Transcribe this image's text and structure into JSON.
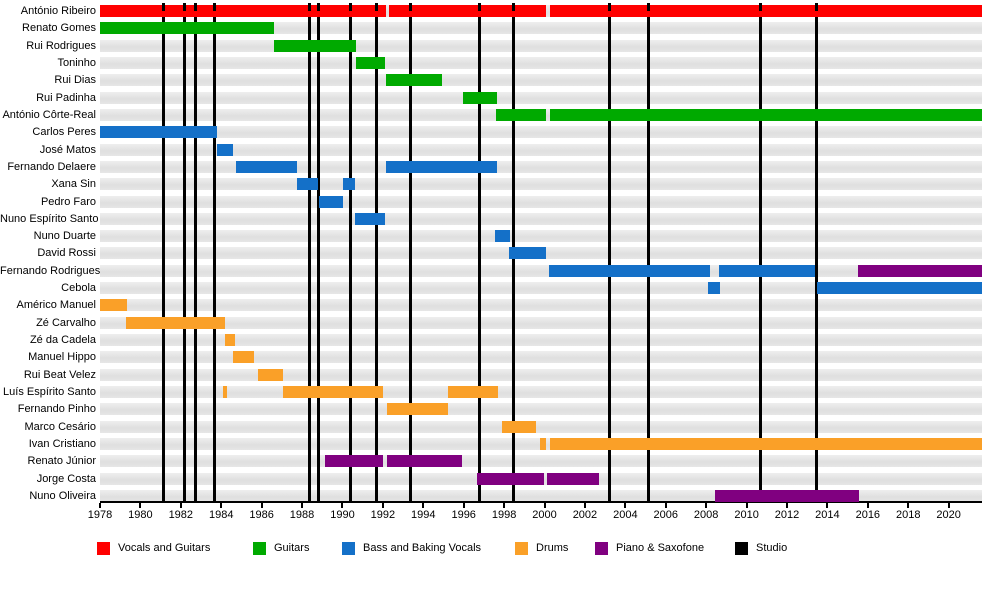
{
  "chart_data": {
    "type": "timeline",
    "title": "",
    "axis": {
      "unit": "year",
      "range_start": 1978,
      "range_end": 2021.65,
      "tick_start": 1978,
      "tick_end": 2020,
      "tick_step": 2
    },
    "palette": {
      "vocals_guitars": "#ff0000",
      "guitars": "#00aa00",
      "bass": "#1470c8",
      "drums": "#faa028",
      "piano_sax": "#800080",
      "studio": "#000000",
      "row_band": "#e3e3e3"
    },
    "legend": [
      {
        "key": "vocals_guitars",
        "label": "Vocals and Guitars"
      },
      {
        "key": "guitars",
        "label": "Guitars"
      },
      {
        "key": "bass",
        "label": "Bass and Baking Vocals"
      },
      {
        "key": "drums",
        "label": "Drums"
      },
      {
        "key": "piano_sax",
        "label": "Piano & Saxofone"
      },
      {
        "key": "studio",
        "label": "Studio"
      }
    ],
    "studio_albums": [
      1981.15,
      1982.2,
      1982.75,
      1983.65,
      1988.35,
      1988.8,
      1990.4,
      1991.7,
      1993.35,
      1996.8,
      1998.45,
      2003.2,
      2005.15,
      2010.7,
      2013.45
    ],
    "members": [
      {
        "name": "António Ribeiro",
        "role": "vocals_guitars",
        "periods": [
          {
            "start": 1978,
            "end": 1992.15
          },
          {
            "start": 1992.3,
            "end": 2000.05
          },
          {
            "start": 2000.25,
            "end": 2021.65
          }
        ]
      },
      {
        "name": "Renato Gomes",
        "role": "guitars",
        "periods": [
          {
            "start": 1978,
            "end": 1986.6
          }
        ]
      },
      {
        "name": "Rui Rodrigues",
        "role": "guitars",
        "periods": [
          {
            "start": 1986.6,
            "end": 1990.65
          }
        ]
      },
      {
        "name": "Toninho",
        "role": "guitars",
        "periods": [
          {
            "start": 1990.65,
            "end": 1992.1
          }
        ]
      },
      {
        "name": "Rui Dias",
        "role": "guitars",
        "periods": [
          {
            "start": 1992.15,
            "end": 1994.95
          }
        ]
      },
      {
        "name": "Rui Padinha",
        "role": "guitars",
        "periods": [
          {
            "start": 1995.95,
            "end": 1997.65
          }
        ]
      },
      {
        "name": "António Côrte-Real",
        "role": "guitars",
        "periods": [
          {
            "start": 1997.6,
            "end": 2000.05
          },
          {
            "start": 2000.25,
            "end": 2021.65
          }
        ]
      },
      {
        "name": "Carlos Peres",
        "role": "bass",
        "periods": [
          {
            "start": 1978,
            "end": 1983.8
          }
        ]
      },
      {
        "name": "José Matos",
        "role": "bass",
        "periods": [
          {
            "start": 1983.8,
            "end": 1984.6
          }
        ]
      },
      {
        "name": "Fernando Delaere",
        "role": "bass",
        "periods": [
          {
            "start": 1984.75,
            "end": 1987.75
          },
          {
            "start": 1992.15,
            "end": 1997.65
          }
        ]
      },
      {
        "name": "Xana Sin",
        "role": "bass",
        "periods": [
          {
            "start": 1987.75,
            "end": 1988.8
          },
          {
            "start": 1990.05,
            "end": 1990.6
          }
        ]
      },
      {
        "name": "Pedro Faro",
        "role": "bass",
        "periods": [
          {
            "start": 1988.85,
            "end": 1990.05
          }
        ]
      },
      {
        "name": "Nuno Espírito Santo",
        "role": "bass",
        "periods": [
          {
            "start": 1990.6,
            "end": 1992.1
          }
        ]
      },
      {
        "name": "Nuno Duarte",
        "role": "bass",
        "periods": [
          {
            "start": 1997.55,
            "end": 1998.3
          }
        ]
      },
      {
        "name": "David Rossi",
        "role": "bass",
        "periods": [
          {
            "start": 1998.25,
            "end": 2000.05
          }
        ]
      },
      {
        "name": "Fernando Rodrigues",
        "role": "bass",
        "periods": [
          {
            "start": 2000.2,
            "end": 2008.2
          },
          {
            "start": 2008.65,
            "end": 2013.4
          },
          {
            "start": 2015.5,
            "end": 2021.65,
            "role": "piano_sax"
          }
        ]
      },
      {
        "name": "Cebola",
        "role": "bass",
        "periods": [
          {
            "start": 2008.1,
            "end": 2008.7
          },
          {
            "start": 2013.5,
            "end": 2021.65
          }
        ]
      },
      {
        "name": "Américo Manuel",
        "role": "drums",
        "periods": [
          {
            "start": 1978,
            "end": 1979.35
          }
        ]
      },
      {
        "name": "Zé Carvalho",
        "role": "drums",
        "periods": [
          {
            "start": 1979.3,
            "end": 1984.2
          }
        ]
      },
      {
        "name": "Zé da Cadela",
        "role": "drums",
        "periods": [
          {
            "start": 1984.2,
            "end": 1984.7
          }
        ]
      },
      {
        "name": "Manuel Hippo",
        "role": "drums",
        "periods": [
          {
            "start": 1984.6,
            "end": 1985.6
          }
        ]
      },
      {
        "name": "Rui Beat Velez",
        "role": "drums",
        "periods": [
          {
            "start": 1985.8,
            "end": 1987.05
          }
        ]
      },
      {
        "name": "Luís Espírito Santo",
        "role": "drums",
        "periods": [
          {
            "start": 1984.1,
            "end": 1984.3
          },
          {
            "start": 1987.05,
            "end": 1992.0
          },
          {
            "start": 1995.2,
            "end": 1997.7
          }
        ]
      },
      {
        "name": "Fernando Pinho",
        "role": "drums",
        "periods": [
          {
            "start": 1992.2,
            "end": 1995.2
          }
        ]
      },
      {
        "name": "Marco Cesário",
        "role": "drums",
        "periods": [
          {
            "start": 1997.9,
            "end": 1999.6
          }
        ]
      },
      {
        "name": "Ivan Cristiano",
        "role": "drums",
        "periods": [
          {
            "start": 1999.8,
            "end": 2000.05
          },
          {
            "start": 2000.25,
            "end": 2021.65
          }
        ]
      },
      {
        "name": "Renato Júnior",
        "role": "piano_sax",
        "periods": [
          {
            "start": 1989.15,
            "end": 1992.0
          },
          {
            "start": 1992.2,
            "end": 1995.9
          }
        ]
      },
      {
        "name": "Jorge Costa",
        "role": "piano_sax",
        "periods": [
          {
            "start": 1996.65,
            "end": 1999.95
          },
          {
            "start": 2000.1,
            "end": 2002.7
          }
        ]
      },
      {
        "name": "Nuno Oliveira",
        "role": "piano_sax",
        "periods": [
          {
            "start": 2008.45,
            "end": 2015.55
          }
        ]
      }
    ]
  }
}
